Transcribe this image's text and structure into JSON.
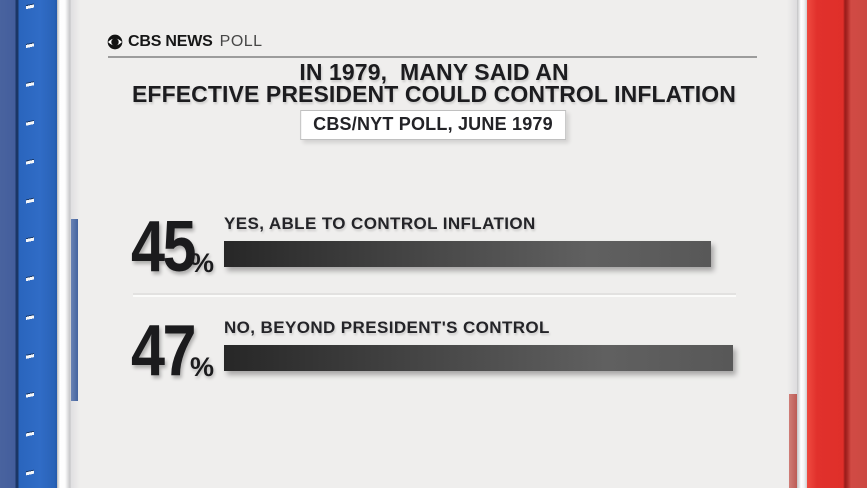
{
  "header": {
    "logo_icon": "cbs-eye-icon",
    "brand_bold": "CBS NEWS",
    "brand_light": "POLL"
  },
  "title": {
    "line1": "IN 1979,  MANY SAID AN",
    "line2": "EFFECTIVE PRESIDENT COULD CONTROL INFLATION"
  },
  "source_badge": {
    "text": "CBS/NYT POLL, JUNE 1979"
  },
  "chart_data": {
    "type": "bar",
    "orientation": "horizontal",
    "title": "IN 1979, MANY SAID AN EFFECTIVE PRESIDENT COULD CONTROL INFLATION",
    "subtitle": "CBS/NYT POLL, JUNE 1979",
    "categories": [
      "YES, ABLE TO CONTROL INFLATION",
      "NO, BEYOND PRESIDENT'S CONTROL"
    ],
    "values": [
      45,
      47
    ],
    "unit": "%",
    "legend": false,
    "grid": false,
    "bar_gradient": [
      "#272727",
      "#606060"
    ]
  },
  "colors": {
    "frame_blue": "#2d68c1",
    "frame_blue_muted": "#47619e",
    "frame_red": "#e1312c",
    "frame_red_muted": "#ce4a43",
    "content_bg": "#efeeed",
    "text_dark": "#1c1c1f"
  }
}
